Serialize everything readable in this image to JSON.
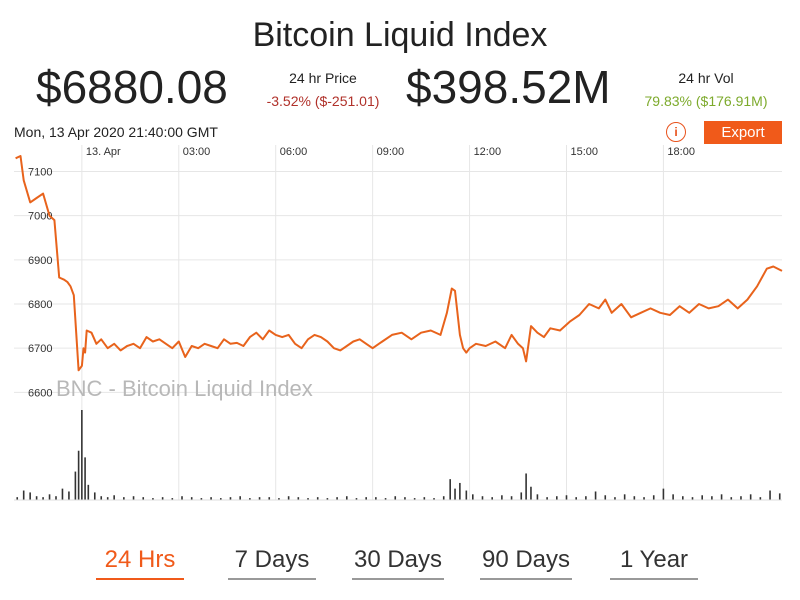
{
  "header": {
    "title": "Bitcoin Liquid Index",
    "price": "$6880.08",
    "price_label": "24 hr Price",
    "price_change": "-3.52% ($-251.01)",
    "volume": "$398.52M",
    "volume_label": "24 hr Vol",
    "volume_change": "79.83% ($176.91M)",
    "timestamp": "Mon, 13 Apr 2020 21:40:00 GMT"
  },
  "toolbar": {
    "info_label": "i",
    "export_label": "Export"
  },
  "colors": {
    "accent": "#f05a1a",
    "line": "#e8631c",
    "negative": "#b0312a",
    "positive": "#7daa2c",
    "watermark": "#b8b8b8"
  },
  "chart_data": {
    "type": "line",
    "title": "",
    "watermark": "BNC - Bitcoin Liquid Index",
    "x_tick_labels": [
      "13. Apr",
      "03:00",
      "06:00",
      "09:00",
      "12:00",
      "15:00",
      "18:00"
    ],
    "x_tick_hours": [
      0,
      3,
      6,
      9,
      12,
      15,
      18
    ],
    "x_range_hours": [
      -2.1,
      21.67
    ],
    "y_ticks": [
      6600,
      6700,
      6800,
      6900,
      7000,
      7100
    ],
    "y_range": [
      6560,
      7160
    ],
    "grid": true,
    "series": [
      {
        "x": [
          -2.05,
          -1.9,
          -1.8,
          -1.6,
          -1.4,
          -1.2,
          -1.0,
          -0.85,
          -0.7,
          -0.55,
          -0.45,
          -0.35,
          -0.25,
          -0.1,
          0.0,
          0.05,
          0.1,
          0.15,
          0.3,
          0.45,
          0.6,
          0.8,
          1.0,
          1.2,
          1.4,
          1.6,
          1.8,
          2.0,
          2.2,
          2.4,
          2.6,
          2.8,
          3.0,
          3.2,
          3.4,
          3.6,
          3.8,
          4.0,
          4.2,
          4.4,
          4.6,
          4.8,
          5.0,
          5.2,
          5.4,
          5.6,
          5.8,
          6.0,
          6.2,
          6.4,
          6.6,
          6.8,
          7.0,
          7.2,
          7.4,
          7.6,
          7.8,
          8.0,
          8.2,
          8.4,
          8.6,
          8.8,
          9.0,
          9.3,
          9.6,
          9.9,
          10.2,
          10.5,
          10.8,
          11.1,
          11.3,
          11.45,
          11.55,
          11.7,
          11.8,
          11.9,
          12.0,
          12.2,
          12.5,
          12.8,
          13.1,
          13.3,
          13.5,
          13.65,
          13.75,
          13.9,
          14.1,
          14.3,
          14.5,
          14.8,
          15.1,
          15.4,
          15.7,
          16.0,
          16.2,
          16.4,
          16.7,
          17.0,
          17.3,
          17.6,
          17.9,
          18.2,
          18.5,
          18.8,
          19.1,
          19.4,
          19.7,
          20.0,
          20.3,
          20.6,
          20.9,
          21.2,
          21.4,
          21.67
        ],
        "values": [
          7130,
          7135,
          7080,
          7030,
          7040,
          7050,
          7000,
          6990,
          6860,
          6855,
          6850,
          6840,
          6820,
          6650,
          6660,
          6700,
          6690,
          6740,
          6735,
          6710,
          6720,
          6700,
          6710,
          6695,
          6705,
          6710,
          6700,
          6725,
          6715,
          6720,
          6710,
          6700,
          6715,
          6680,
          6705,
          6700,
          6710,
          6705,
          6700,
          6720,
          6710,
          6712,
          6705,
          6725,
          6735,
          6720,
          6740,
          6730,
          6725,
          6730,
          6710,
          6700,
          6720,
          6730,
          6725,
          6715,
          6700,
          6695,
          6705,
          6715,
          6720,
          6710,
          6700,
          6715,
          6730,
          6735,
          6720,
          6735,
          6740,
          6730,
          6780,
          6835,
          6830,
          6730,
          6700,
          6690,
          6700,
          6710,
          6705,
          6715,
          6700,
          6730,
          6710,
          6700,
          6670,
          6750,
          6735,
          6725,
          6745,
          6740,
          6760,
          6775,
          6800,
          6790,
          6810,
          6780,
          6800,
          6770,
          6780,
          6790,
          6780,
          6775,
          6795,
          6780,
          6800,
          6790,
          6795,
          6810,
          6790,
          6810,
          6840,
          6880,
          6885,
          6875
        ]
      }
    ],
    "volume": {
      "x": [
        -2.0,
        -1.8,
        -1.6,
        -1.4,
        -1.2,
        -1.0,
        -0.8,
        -0.6,
        -0.4,
        -0.2,
        -0.1,
        0.0,
        0.1,
        0.2,
        0.4,
        0.6,
        0.8,
        1.0,
        1.3,
        1.6,
        1.9,
        2.2,
        2.5,
        2.8,
        3.1,
        3.4,
        3.7,
        4.0,
        4.3,
        4.6,
        4.9,
        5.2,
        5.5,
        5.8,
        6.1,
        6.4,
        6.7,
        7.0,
        7.3,
        7.6,
        7.9,
        8.2,
        8.5,
        8.8,
        9.1,
        9.4,
        9.7,
        10.0,
        10.3,
        10.6,
        10.9,
        11.2,
        11.4,
        11.55,
        11.7,
        11.9,
        12.1,
        12.4,
        12.7,
        13.0,
        13.3,
        13.6,
        13.75,
        13.9,
        14.1,
        14.4,
        14.7,
        15.0,
        15.3,
        15.6,
        15.9,
        16.2,
        16.5,
        16.8,
        17.1,
        17.4,
        17.7,
        18.0,
        18.3,
        18.6,
        18.9,
        19.2,
        19.5,
        19.8,
        20.1,
        20.4,
        20.7,
        21.0,
        21.3,
        21.6
      ],
      "values": [
        3,
        10,
        8,
        4,
        3,
        6,
        4,
        12,
        9,
        30,
        52,
        95,
        45,
        16,
        8,
        4,
        3,
        5,
        3,
        4,
        3,
        2,
        3,
        2,
        4,
        3,
        2,
        3,
        2,
        3,
        4,
        2,
        3,
        3,
        2,
        4,
        3,
        2,
        3,
        2,
        3,
        4,
        2,
        3,
        3,
        2,
        4,
        3,
        2,
        3,
        2,
        4,
        22,
        12,
        18,
        10,
        6,
        4,
        3,
        5,
        4,
        8,
        28,
        14,
        6,
        3,
        4,
        5,
        3,
        4,
        9,
        5,
        3,
        6,
        4,
        3,
        5,
        12,
        6,
        4,
        3,
        5,
        4,
        6,
        3,
        4,
        6,
        3,
        10,
        7
      ]
    }
  },
  "range_tabs": [
    {
      "label": "24 Hrs",
      "active": true
    },
    {
      "label": "7 Days",
      "active": false
    },
    {
      "label": "30 Days",
      "active": false
    },
    {
      "label": "90 Days",
      "active": false
    },
    {
      "label": "1 Year",
      "active": false
    }
  ]
}
